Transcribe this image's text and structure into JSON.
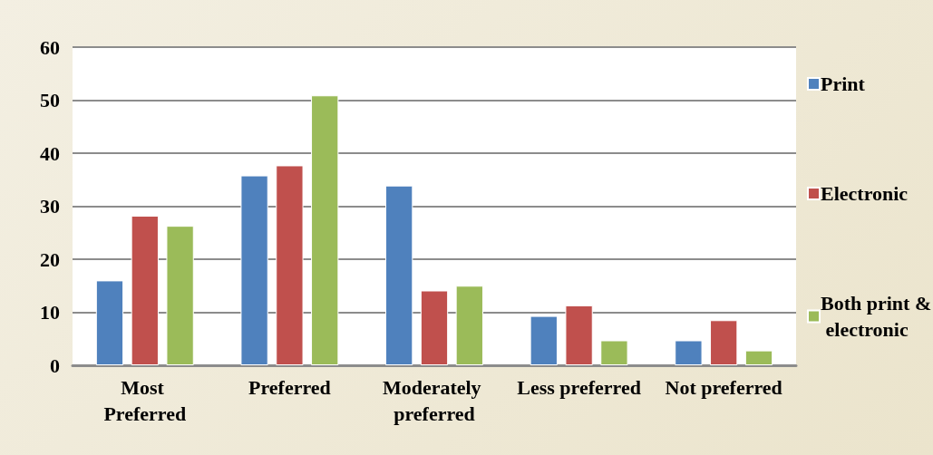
{
  "chart_data": {
    "type": "bar",
    "categories": [
      "Most Preferred",
      "Preferred",
      "Moderately preferred",
      "Less preferred",
      "Not preferred"
    ],
    "series": [
      {
        "name": "Print",
        "color": "#4f81bd",
        "values": [
          16,
          35.8,
          33.9,
          9.3,
          4.7
        ]
      },
      {
        "name": "Electronic",
        "color": "#c0504d",
        "values": [
          28.2,
          37.7,
          14.1,
          11.3,
          8.5
        ]
      },
      {
        "name": "Both print & electronic",
        "color": "#9bbb59",
        "values": [
          26.3,
          50.9,
          15,
          4.7,
          2.8
        ]
      }
    ],
    "ylim": [
      0,
      60
    ],
    "yticks": [
      0,
      10,
      20,
      30,
      40,
      50,
      60
    ],
    "grid": "y",
    "legend": "right"
  }
}
